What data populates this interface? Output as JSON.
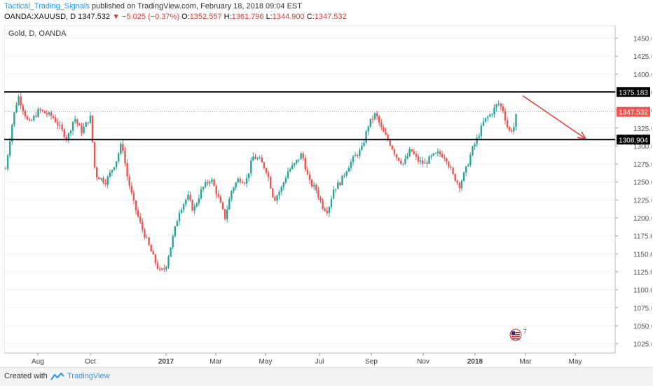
{
  "header": {
    "author": "Tactical_Trading_Signals",
    "published": " published on TradingView.com, February 18, 2018 09:04 EST",
    "symbol": "OANDA:XAUUSD, D",
    "last": "1347.532",
    "change": "−5.025 (−0.37%)",
    "o_label": "O:",
    "o_val": "1352.557",
    "h_label": "H:",
    "h_val": "1361.796",
    "l_label": "L:",
    "l_val": "1344.900",
    "c_label": "C:",
    "c_val": "1347.532"
  },
  "footer": {
    "created_with": "Created with",
    "brand": "TradingView"
  },
  "colors": {
    "up": "#26a69a",
    "down": "#ef5350",
    "accent": "#2196f3",
    "level_line": "#000000",
    "arrow": "#e53935"
  },
  "badge_text": "7",
  "chart_data": {
    "type": "candlestick",
    "title": "Gold, D, OANDA",
    "ylim": [
      1012,
      1468
    ],
    "x_ticks": [
      "Aug",
      "Oct",
      "2017",
      "Mar",
      "May",
      "Jul",
      "Sep",
      "Nov",
      "2018",
      "Mar",
      "May"
    ],
    "y_ticks": [
      1025,
      1050,
      1075,
      1100,
      1125,
      1150,
      1175,
      1200,
      1225,
      1250,
      1275,
      1300,
      1325,
      1350,
      1375,
      1400,
      1425,
      1450
    ],
    "levels": [
      {
        "value": 1375.183,
        "label": "1375.183"
      },
      {
        "value": 1308.904,
        "label": "1308.904"
      }
    ],
    "current_price": {
      "value": 1347.532,
      "label": "1347.532"
    },
    "series": [
      {
        "date": "2016-07",
        "value": 1340
      },
      {
        "date": "2016-08",
        "value": 1345
      },
      {
        "date": "2016-09",
        "value": 1325
      },
      {
        "date": "2016-10",
        "value": 1260
      },
      {
        "date": "2016-11",
        "value": 1180
      },
      {
        "date": "2016-12",
        "value": 1135
      },
      {
        "date": "2017-01",
        "value": 1200
      },
      {
        "date": "2017-02",
        "value": 1250
      },
      {
        "date": "2017-03",
        "value": 1240
      },
      {
        "date": "2017-04",
        "value": 1285
      },
      {
        "date": "2017-05",
        "value": 1265
      },
      {
        "date": "2017-06",
        "value": 1250
      },
      {
        "date": "2017-07",
        "value": 1260
      },
      {
        "date": "2017-08",
        "value": 1300
      },
      {
        "date": "2017-09",
        "value": 1300
      },
      {
        "date": "2017-10",
        "value": 1275
      },
      {
        "date": "2017-11",
        "value": 1285
      },
      {
        "date": "2017-12",
        "value": 1300
      },
      {
        "date": "2018-01",
        "value": 1345
      },
      {
        "date": "2018-02",
        "value": 1347.532
      }
    ]
  }
}
